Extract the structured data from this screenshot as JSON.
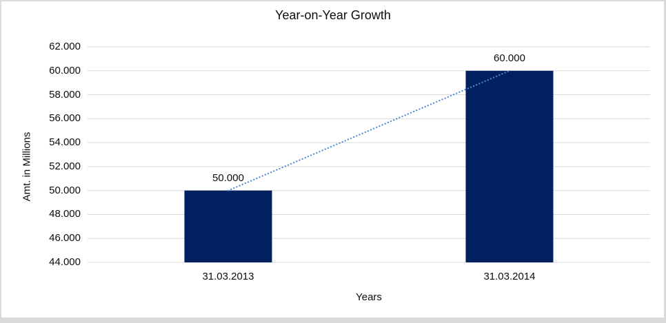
{
  "chart_data": {
    "type": "bar",
    "title": "Year-on-Year Growth",
    "xlabel": "Years",
    "ylabel": "Amt. in Millions",
    "categories": [
      "31.03.2013",
      "31.03.2014"
    ],
    "values": [
      50000,
      60000
    ],
    "value_labels": [
      "50.000",
      "60.000"
    ],
    "ylim": [
      44000,
      62000
    ],
    "ytick_step": 2000,
    "yticks": [
      "44.000",
      "46.000",
      "48.000",
      "50.000",
      "52.000",
      "54.000",
      "56.000",
      "58.000",
      "60.000",
      "62.000"
    ],
    "grid": true,
    "legend": false,
    "trendline": {
      "type": "linear",
      "style": "dotted",
      "points": [
        [
          0,
          50000
        ],
        [
          1,
          60000
        ]
      ]
    },
    "colors": {
      "bar": "#002060",
      "trendline": "#4F87D2",
      "gridline": "#D9D9D9",
      "text": "#0D0D0D",
      "background": "#FFFFFF",
      "frame_border": "#DADADA"
    }
  }
}
